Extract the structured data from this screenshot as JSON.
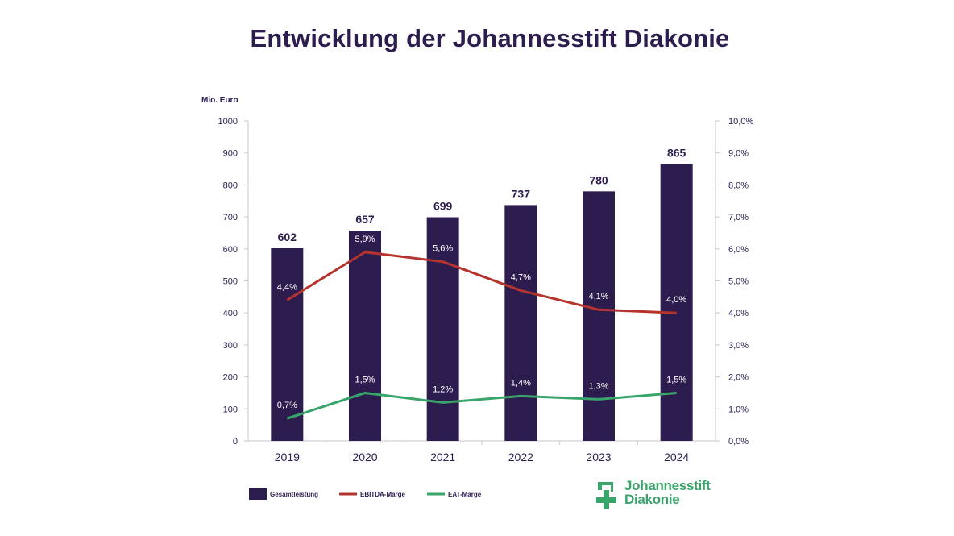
{
  "chart_data": {
    "type": "bar",
    "title": "Entwicklung der Johannesstift Diakonie",
    "ylabel_left": "Mio. Euro",
    "categories": [
      "2019",
      "2020",
      "2021",
      "2022",
      "2023",
      "2024"
    ],
    "ylim_left": [
      0,
      1000
    ],
    "ylim_right": [
      0,
      10
    ],
    "yticks_left": [
      "0",
      "100",
      "200",
      "300",
      "400",
      "500",
      "600",
      "700",
      "800",
      "900",
      "1000"
    ],
    "yticks_right": [
      "0,0%",
      "1,0%",
      "2,0%",
      "3,0%",
      "4,0%",
      "5,0%",
      "6,0%",
      "7,0%",
      "8,0%",
      "9,0%",
      "10,0%"
    ],
    "grid": false,
    "legend_placement": "bottom-left",
    "series": [
      {
        "name": "Gesamtleistung",
        "type": "bar",
        "axis": "left",
        "color": "#2d1d4f",
        "values": [
          602,
          657,
          699,
          737,
          780,
          865
        ],
        "labels": [
          "602",
          "657",
          "699",
          "737",
          "780",
          "865"
        ]
      },
      {
        "name": "EBITDA-Marge",
        "type": "line",
        "axis": "right",
        "color": "#b5342d",
        "values": [
          4.4,
          5.9,
          5.6,
          4.7,
          4.1,
          4.0
        ],
        "labels": [
          "4,4%",
          "5,9%",
          "5,6%",
          "4,7%",
          "4,1%",
          "4,0%"
        ]
      },
      {
        "name": "EAT-Marge",
        "type": "line",
        "axis": "right",
        "color": "#3aa56a",
        "values": [
          0.7,
          1.5,
          1.2,
          1.4,
          1.3,
          1.5
        ],
        "labels": [
          "0,7%",
          "1,5%",
          "1,2%",
          "1,4%",
          "1,3%",
          "1,5%"
        ]
      }
    ]
  },
  "logo": {
    "line1": "Johannesstift",
    "line2": "Diakonie",
    "color": "#3aa56a",
    "icon": "cross-icon"
  }
}
